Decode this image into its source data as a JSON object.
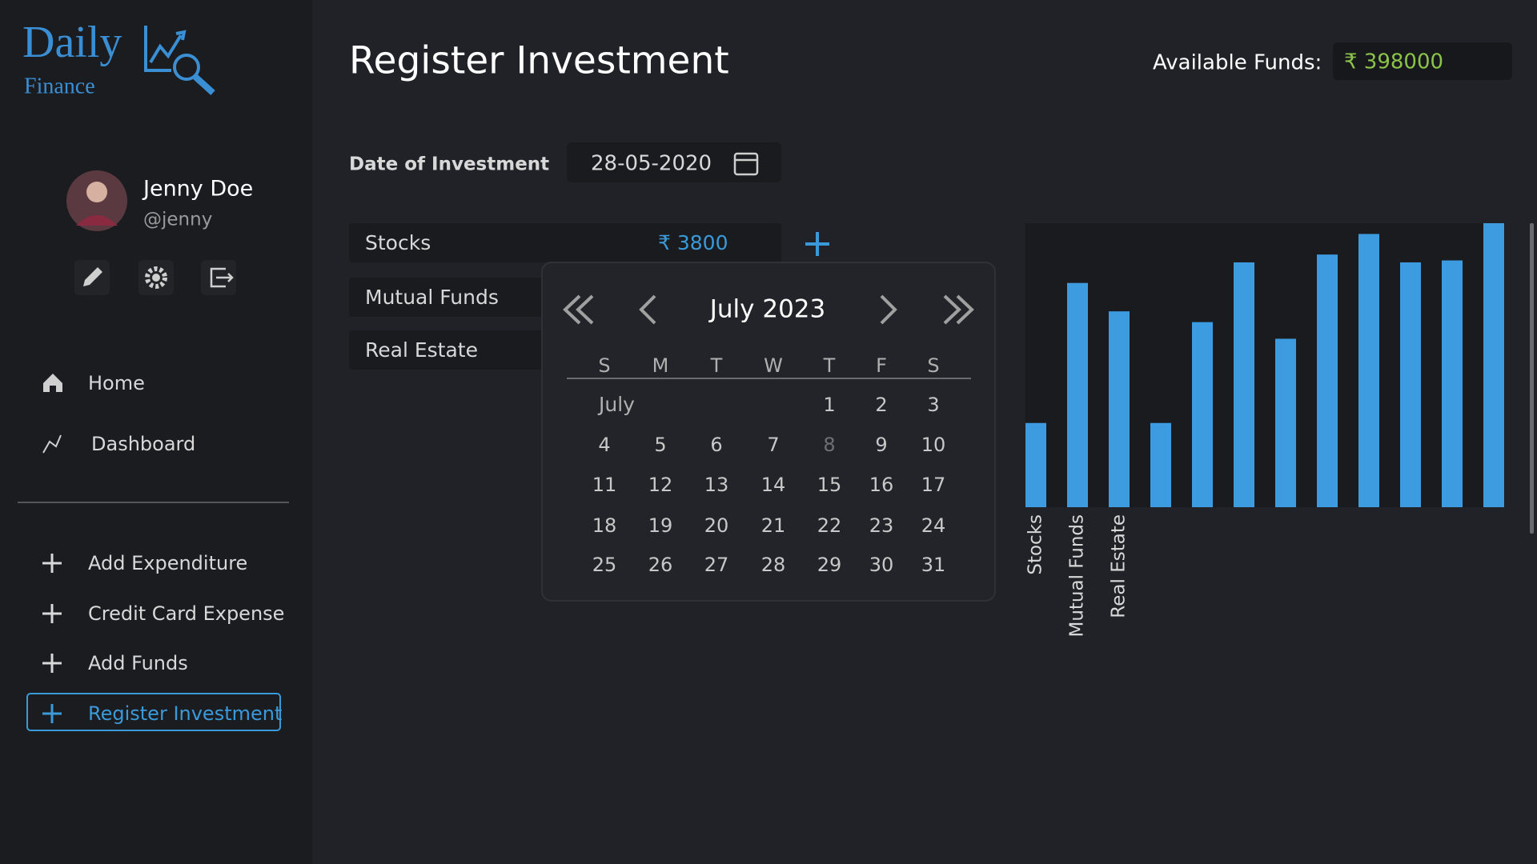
{
  "logo": {
    "title": "Daily",
    "subtitle": "Finance"
  },
  "user": {
    "name": "Jenny Doe",
    "handle": "@jenny"
  },
  "nav": [
    "Home",
    "Dashboard"
  ],
  "actions": [
    "Add Expenditure",
    "Credit Card Expense",
    "Add Funds",
    "Register Investment"
  ],
  "header": {
    "title": "Register Investment",
    "funds_label": "Available Funds:",
    "funds_value": "₹ 398000"
  },
  "form": {
    "date_label": "Date of Investment",
    "date_value": "28-05-2020",
    "rows": [
      {
        "name": "Stocks",
        "amount": "₹ 3800"
      },
      {
        "name": "Mutual Funds"
      },
      {
        "name": "Real Estate"
      }
    ]
  },
  "calendar": {
    "title": "July 2023",
    "weekdays": [
      "S",
      "M",
      "T",
      "W",
      "T",
      "F",
      "S"
    ],
    "month_label": "July",
    "weeks": [
      [
        1,
        2,
        3
      ],
      [
        4,
        5,
        6,
        7,
        8,
        9,
        10
      ],
      [
        11,
        12,
        13,
        14,
        15,
        16,
        17
      ],
      [
        18,
        19,
        20,
        21,
        22,
        23,
        24
      ],
      [
        25,
        26,
        27,
        28,
        29,
        30,
        31
      ]
    ],
    "muted_day": 8
  },
  "chart_data": {
    "type": "bar",
    "categories": [
      "Stocks",
      "Mutual Funds",
      "Real Estate",
      null,
      null,
      null,
      null,
      null,
      null,
      null,
      null,
      null
    ],
    "values": [
      86,
      229,
      200,
      86,
      189,
      250,
      172,
      258,
      279,
      250,
      252,
      290
    ],
    "color": "#3d9be0",
    "ylim": [
      0,
      290
    ]
  }
}
